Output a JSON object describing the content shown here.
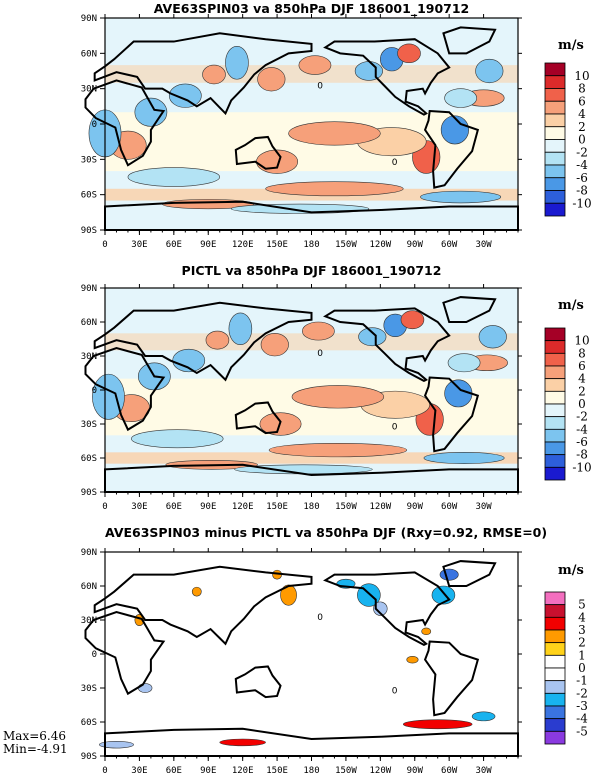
{
  "chart_data": [
    {
      "type": "heatmap",
      "title": "AVE63SPIN03 va 850hPa DJF 186001_190712",
      "units": "m/s",
      "x_ticks": [
        "0",
        "30E",
        "60E",
        "90E",
        "120E",
        "150E",
        "180",
        "150W",
        "120W",
        "90W",
        "60W",
        "30W"
      ],
      "y_ticks": [
        "90N",
        "60N",
        "30N",
        "0",
        "30S",
        "60S",
        "90S"
      ],
      "colorbar_levels": [
        "10",
        "8",
        "6",
        "4",
        "2",
        "0",
        "-2",
        "-4",
        "-6",
        "-8",
        "-10"
      ],
      "colorbar_colors": [
        "#a50026",
        "#dc2a2a",
        "#f0614a",
        "#f6a07a",
        "#fbd0a6",
        "#fffbe6",
        "#e4f5fb",
        "#b3e3f4",
        "#7cc4ef",
        "#4a98e6",
        "#2d5fdb",
        "#1a1ad0"
      ],
      "contour_label": "0"
    },
    {
      "type": "heatmap",
      "title": "PICTL va 850hPa DJF 186001_190712",
      "units": "m/s",
      "x_ticks": [
        "0",
        "30E",
        "60E",
        "90E",
        "120E",
        "150E",
        "180",
        "150W",
        "120W",
        "90W",
        "60W",
        "30W"
      ],
      "y_ticks": [
        "90N",
        "60N",
        "30N",
        "0",
        "30S",
        "60S",
        "90S"
      ],
      "colorbar_levels": [
        "10",
        "8",
        "6",
        "4",
        "2",
        "0",
        "-2",
        "-4",
        "-6",
        "-8",
        "-10"
      ],
      "colorbar_colors": [
        "#a50026",
        "#dc2a2a",
        "#f0614a",
        "#f6a07a",
        "#fbd0a6",
        "#fffbe6",
        "#e4f5fb",
        "#b3e3f4",
        "#7cc4ef",
        "#4a98e6",
        "#2d5fdb",
        "#1a1ad0"
      ],
      "contour_label": "0"
    },
    {
      "type": "heatmap",
      "title": "AVE63SPIN03 minus PICTL va 850hPa DJF (Rxy=0.92, RMSE=0)",
      "units": "m/s",
      "x_ticks": [
        "0",
        "30E",
        "60E",
        "90E",
        "120E",
        "150E",
        "180",
        "150W",
        "120W",
        "90W",
        "60W",
        "30W"
      ],
      "y_ticks": [
        "90N",
        "60N",
        "30N",
        "0",
        "30S",
        "60S",
        "90S"
      ],
      "colorbar_levels": [
        "5",
        "4",
        "3",
        "2",
        "1",
        "0",
        "-1",
        "-2",
        "-3",
        "-4",
        "-5"
      ],
      "colorbar_colors": [
        "#f36fbf",
        "#c8102e",
        "#f20000",
        "#ff9a00",
        "#ffd21a",
        "#ffffff",
        "#ffffff",
        "#a8c4f0",
        "#18b3ef",
        "#3a74e0",
        "#2a3ccf",
        "#8a3ae0"
      ],
      "stats": {
        "max": "Max=6.46",
        "min": "Min=-4.91"
      },
      "contour_label": "0"
    }
  ]
}
